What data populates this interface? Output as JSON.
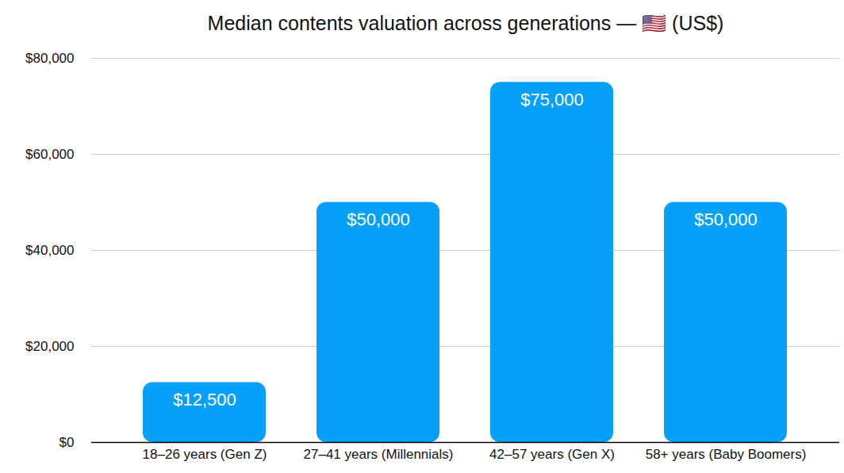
{
  "chart_data": {
    "type": "bar",
    "title": "Median contents valuation across generations — 🇺🇸 (US$)",
    "categories": [
      "18–26 years (Gen Z)",
      "27–41 years (Millennials)",
      "42–57 years (Gen X)",
      "58+ years (Baby Boomers)"
    ],
    "values": [
      12500,
      50000,
      75000,
      50000
    ],
    "value_labels": [
      "$12,500",
      "$50,000",
      "$75,000",
      "$50,000"
    ],
    "color": "#06a0f8",
    "ylim": [
      0,
      80000
    ],
    "yticks": [
      {
        "value": 0,
        "label": "$0"
      },
      {
        "value": 20000,
        "label": "$20,000"
      },
      {
        "value": 40000,
        "label": "$40,000"
      },
      {
        "value": 60000,
        "label": "$60,000"
      },
      {
        "value": 80000,
        "label": "$80,000"
      }
    ],
    "grid": true,
    "data_labels": true
  }
}
